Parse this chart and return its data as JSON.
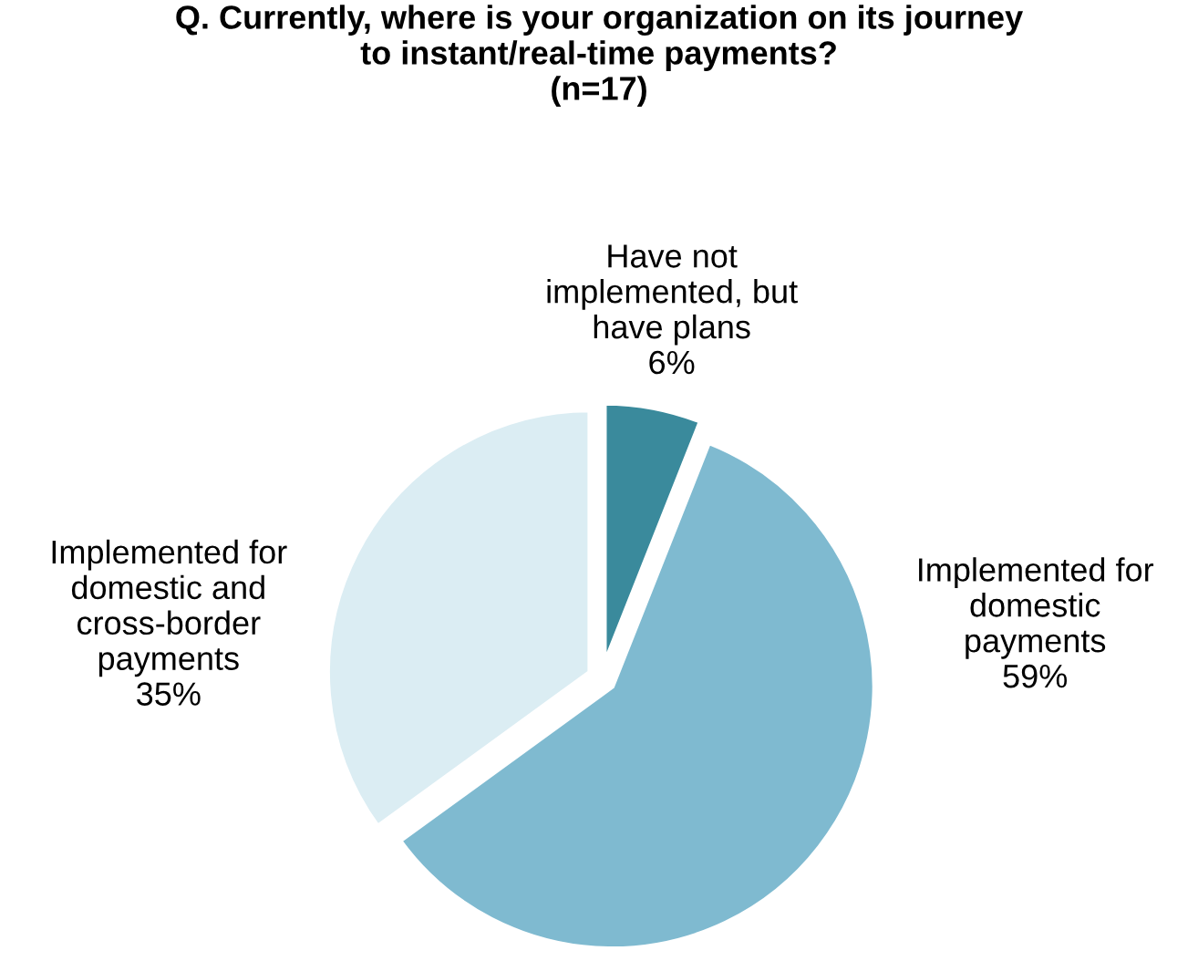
{
  "chart_data": {
    "type": "pie",
    "title": "Q. Currently, where is your organization on its journey\nto instant/real-time payments?\n(n=17)",
    "categories": [
      "Have not\nimplemented, but\nhave plans",
      "Implemented for\ndomestic\npayments",
      "Implemented for\ndomestic and\ncross-border\npayments"
    ],
    "values": [
      6,
      59,
      35
    ],
    "colors": [
      "#3a8a9c",
      "#7fbad0",
      "#dbedf3"
    ],
    "value_labels": [
      "6%",
      "59%",
      "35%"
    ]
  }
}
